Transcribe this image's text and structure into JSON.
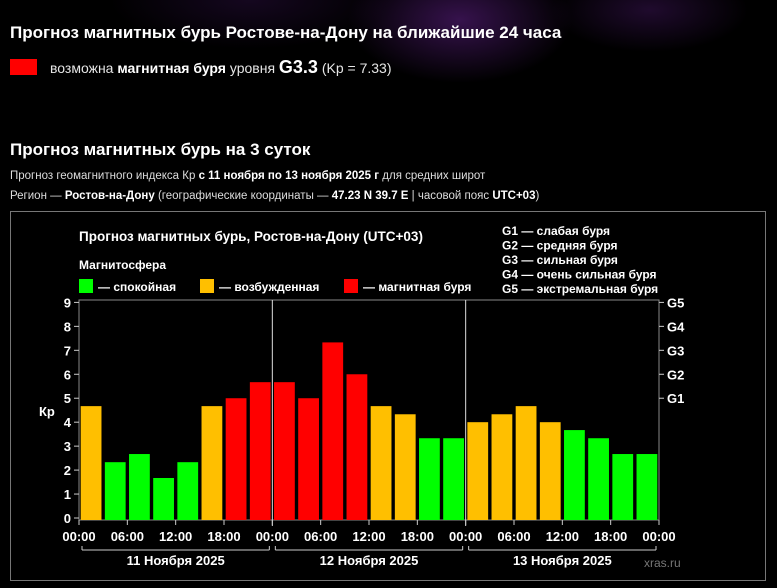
{
  "header": {
    "title": "Прогноз магнитных бурь Ростове-на-Дону на ближайшие 24 часа",
    "storm_prefix": "возможна",
    "storm_bold": "магнитная буря",
    "storm_mid": "уровня",
    "storm_level": "G3.3",
    "storm_kp": "(Kp = 7.33)",
    "storm_color": "#ff0000"
  },
  "section": {
    "title": "Прогноз магнитных бурь на 3 суток",
    "sub1_prefix": "Прогноз геомагнитного индекса Кр",
    "sub1_bold": "с 11 ноября по 13 ноября 2025 г",
    "sub1_suffix": "для средних широт",
    "sub2_prefix": "Регион —",
    "sub2_region": "Ростов-на-Дону",
    "sub2_mid": "(географические координаты —",
    "sub2_coords": "47.23 N 39.7 E",
    "sub2_tz_prefix": "| часовой пояс",
    "sub2_tz": "UTC+03",
    "sub2_end": ")"
  },
  "chart_data": {
    "type": "bar",
    "title": "Прогноз магнитных бурь, Ростов-на-Дону (UTC+03)",
    "legend_title": "Магнитосфера",
    "legend": [
      {
        "label": "— спокойная",
        "color": "#00ff00"
      },
      {
        "label": "— возбужденная",
        "color": "#ffbf00"
      },
      {
        "label": "— магнитная буря",
        "color": "#ff0000"
      }
    ],
    "g_legend": [
      "G1 — слабая буря",
      "G2 — средняя буря",
      "G3 — сильная буря",
      "G4 — очень сильная буря",
      "G5 — экстремальная буря"
    ],
    "ylabel": "Кр",
    "ylim": [
      0,
      9
    ],
    "y_ticks": [
      "0",
      "1",
      "2",
      "3",
      "4",
      "5",
      "6",
      "7",
      "8",
      "9"
    ],
    "g_ticks": [
      {
        "label": "G1",
        "kp": 5
      },
      {
        "label": "G2",
        "kp": 6
      },
      {
        "label": "G3",
        "kp": 7
      },
      {
        "label": "G4",
        "kp": 8
      },
      {
        "label": "G5",
        "kp": 9
      }
    ],
    "x_ticks": [
      "00:00",
      "06:00",
      "12:00",
      "18:00",
      "00:00",
      "06:00",
      "12:00",
      "18:00",
      "00:00",
      "06:00",
      "12:00",
      "18:00",
      "00:00"
    ],
    "days": [
      "11 Ноября 2025",
      "12 Ноября 2025",
      "13 Ноября 2025"
    ],
    "values": [
      4.67,
      2.33,
      2.67,
      1.67,
      2.33,
      4.67,
      5.0,
      5.67,
      5.67,
      5.0,
      7.33,
      6.0,
      4.67,
      4.33,
      3.33,
      3.33,
      4.0,
      4.33,
      4.67,
      4.0,
      3.67,
      3.33,
      2.67,
      2.67
    ],
    "colors": {
      "quiet": "#00ff00",
      "active": "#ffbf00",
      "storm": "#ff0000"
    },
    "watermark": "xras.ru",
    "grid": true
  }
}
